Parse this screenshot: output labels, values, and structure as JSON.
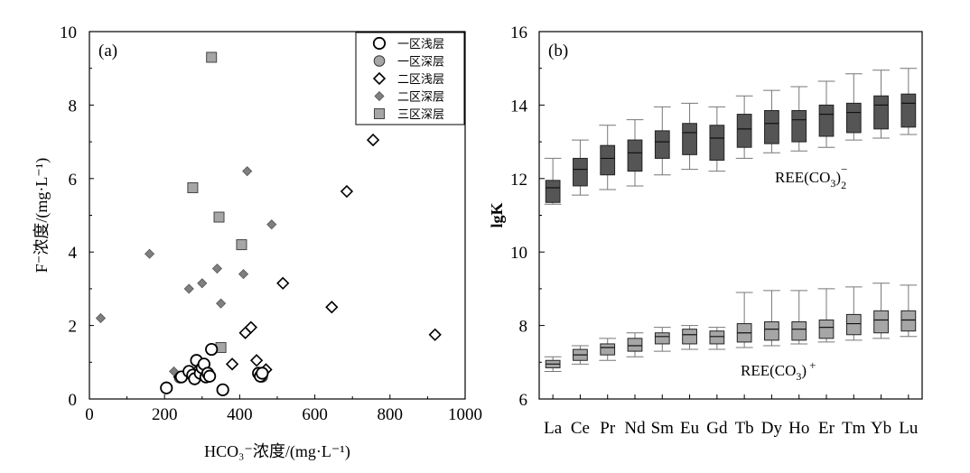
{
  "chart_data": [
    {
      "type": "scatter",
      "panel_label": "(a)",
      "xlabel": "HCO₃⁻浓度/(mg·L⁻¹)",
      "ylabel": "F⁻浓度/(mg·L⁻¹)",
      "xlim": [
        0,
        1000
      ],
      "ylim": [
        0,
        10
      ],
      "xticks": [
        "0",
        "200",
        "400",
        "600",
        "800",
        "1000"
      ],
      "yticks": [
        "0",
        "2",
        "4",
        "6",
        "8",
        "10"
      ],
      "legend_position": "top-right",
      "series": [
        {
          "name": "一区浅层",
          "marker": "circle-open",
          "color": "#000000",
          "points": [
            [
              205,
              0.3
            ],
            [
              245,
              0.6
            ],
            [
              265,
              0.75
            ],
            [
              275,
              0.65
            ],
            [
              280,
              0.55
            ],
            [
              285,
              1.05
            ],
            [
              295,
              0.7
            ],
            [
              300,
              0.85
            ],
            [
              305,
              0.95
            ],
            [
              310,
              0.6
            ],
            [
              315,
              0.7
            ],
            [
              320,
              0.62
            ],
            [
              325,
              1.35
            ],
            [
              355,
              0.25
            ],
            [
              450,
              0.7
            ],
            [
              455,
              0.62
            ],
            [
              460,
              0.7
            ]
          ]
        },
        {
          "name": "一区深层",
          "marker": "circle-filled",
          "color": "#a6a6a6",
          "points": [
            [
              205,
              0.32
            ],
            [
              240,
              0.58
            ],
            [
              300,
              0.72
            ],
            [
              310,
              0.66
            ],
            [
              460,
              0.6
            ]
          ]
        },
        {
          "name": "二区浅层",
          "marker": "diamond-open",
          "color": "#000000",
          "points": [
            [
              240,
              0.6
            ],
            [
              285,
              0.75
            ],
            [
              380,
              0.95
            ],
            [
              415,
              1.8
            ],
            [
              430,
              1.95
            ],
            [
              445,
              1.05
            ],
            [
              470,
              0.8
            ],
            [
              515,
              3.15
            ],
            [
              645,
              2.5
            ],
            [
              685,
              5.65
            ],
            [
              755,
              7.05
            ],
            [
              920,
              1.75
            ]
          ]
        },
        {
          "name": "二区深层",
          "marker": "diamond-filled",
          "color": "#7f7f7f",
          "points": [
            [
              30,
              2.2
            ],
            [
              160,
              3.95
            ],
            [
              225,
              0.75
            ],
            [
              265,
              3.0
            ],
            [
              300,
              3.15
            ],
            [
              340,
              3.55
            ],
            [
              350,
              2.6
            ],
            [
              410,
              3.4
            ],
            [
              420,
              6.2
            ],
            [
              485,
              4.75
            ]
          ]
        },
        {
          "name": "三区深层",
          "marker": "square-filled",
          "color": "#a6a6a6",
          "points": [
            [
              275,
              5.75
            ],
            [
              325,
              9.3
            ],
            [
              345,
              4.95
            ],
            [
              350,
              1.4
            ],
            [
              405,
              4.2
            ]
          ]
        }
      ]
    },
    {
      "type": "box",
      "panel_label": "(b)",
      "ylabel": "lgK",
      "ylim": [
        6,
        16
      ],
      "yticks": [
        "6",
        "8",
        "10",
        "12",
        "14",
        "16"
      ],
      "categories": [
        "La",
        "Ce",
        "Pr",
        "Nd",
        "Sm",
        "Eu",
        "Gd",
        "Tb",
        "Dy",
        "Ho",
        "Er",
        "Tm",
        "Yb",
        "Lu"
      ],
      "series": [
        {
          "name": "REE(CO₃)₂⁻",
          "label_main": "REE(CO",
          "label_sub": "3",
          "label_close": ")",
          "label_sub2": "2",
          "label_sup": "−",
          "color": "#555555",
          "boxes": [
            {
              "whisker_low": 11.3,
              "q1": 11.35,
              "median": 11.75,
              "q3": 11.95,
              "whisker_high": 12.55
            },
            {
              "whisker_low": 11.55,
              "q1": 11.8,
              "median": 12.25,
              "q3": 12.55,
              "whisker_high": 13.05
            },
            {
              "whisker_low": 11.7,
              "q1": 12.1,
              "median": 12.55,
              "q3": 12.9,
              "whisker_high": 13.45
            },
            {
              "whisker_low": 11.8,
              "q1": 12.2,
              "median": 12.7,
              "q3": 13.05,
              "whisker_high": 13.6
            },
            {
              "whisker_low": 12.1,
              "q1": 12.55,
              "median": 13.0,
              "q3": 13.3,
              "whisker_high": 13.95
            },
            {
              "whisker_low": 12.25,
              "q1": 12.65,
              "median": 13.25,
              "q3": 13.5,
              "whisker_high": 14.05
            },
            {
              "whisker_low": 12.2,
              "q1": 12.5,
              "median": 13.1,
              "q3": 13.45,
              "whisker_high": 13.95
            },
            {
              "whisker_low": 12.55,
              "q1": 12.85,
              "median": 13.35,
              "q3": 13.75,
              "whisker_high": 14.25
            },
            {
              "whisker_low": 12.7,
              "q1": 12.95,
              "median": 13.5,
              "q3": 13.85,
              "whisker_high": 14.4
            },
            {
              "whisker_low": 12.75,
              "q1": 13.0,
              "median": 13.6,
              "q3": 13.85,
              "whisker_high": 14.5
            },
            {
              "whisker_low": 12.85,
              "q1": 13.15,
              "median": 13.75,
              "q3": 14.0,
              "whisker_high": 14.65
            },
            {
              "whisker_low": 13.05,
              "q1": 13.25,
              "median": 13.8,
              "q3": 14.05,
              "whisker_high": 14.85
            },
            {
              "whisker_low": 13.1,
              "q1": 13.35,
              "median": 14.0,
              "q3": 14.25,
              "whisker_high": 14.95
            },
            {
              "whisker_low": 13.2,
              "q1": 13.4,
              "median": 14.05,
              "q3": 14.3,
              "whisker_high": 15.0
            }
          ]
        },
        {
          "name": "REE(CO₃)⁺",
          "label_main": "REE(CO",
          "label_sub": "3",
          "label_close": ")",
          "label_sup": "+",
          "color": "#a6a6a6",
          "boxes": [
            {
              "whisker_low": 6.75,
              "q1": 6.85,
              "median": 6.95,
              "q3": 7.05,
              "whisker_high": 7.15
            },
            {
              "whisker_low": 6.95,
              "q1": 7.05,
              "median": 7.2,
              "q3": 7.35,
              "whisker_high": 7.45
            },
            {
              "whisker_low": 7.05,
              "q1": 7.2,
              "median": 7.4,
              "q3": 7.5,
              "whisker_high": 7.65
            },
            {
              "whisker_low": 7.15,
              "q1": 7.3,
              "median": 7.45,
              "q3": 7.65,
              "whisker_high": 7.8
            },
            {
              "whisker_low": 7.3,
              "q1": 7.5,
              "median": 7.7,
              "q3": 7.8,
              "whisker_high": 7.95
            },
            {
              "whisker_low": 7.35,
              "q1": 7.5,
              "median": 7.75,
              "q3": 7.9,
              "whisker_high": 8.0
            },
            {
              "whisker_low": 7.35,
              "q1": 7.5,
              "median": 7.7,
              "q3": 7.85,
              "whisker_high": 7.95
            },
            {
              "whisker_low": 7.4,
              "q1": 7.55,
              "median": 7.8,
              "q3": 8.05,
              "whisker_high": 8.9
            },
            {
              "whisker_low": 7.45,
              "q1": 7.6,
              "median": 7.9,
              "q3": 8.1,
              "whisker_high": 8.95
            },
            {
              "whisker_low": 7.5,
              "q1": 7.6,
              "median": 7.9,
              "q3": 8.1,
              "whisker_high": 8.95
            },
            {
              "whisker_low": 7.55,
              "q1": 7.65,
              "median": 7.95,
              "q3": 8.15,
              "whisker_high": 9.0
            },
            {
              "whisker_low": 7.6,
              "q1": 7.75,
              "median": 8.05,
              "q3": 8.3,
              "whisker_high": 9.05
            },
            {
              "whisker_low": 7.65,
              "q1": 7.8,
              "median": 8.15,
              "q3": 8.4,
              "whisker_high": 9.15
            },
            {
              "whisker_low": 7.7,
              "q1": 7.85,
              "median": 8.15,
              "q3": 8.4,
              "whisker_high": 9.1
            }
          ]
        }
      ]
    }
  ]
}
